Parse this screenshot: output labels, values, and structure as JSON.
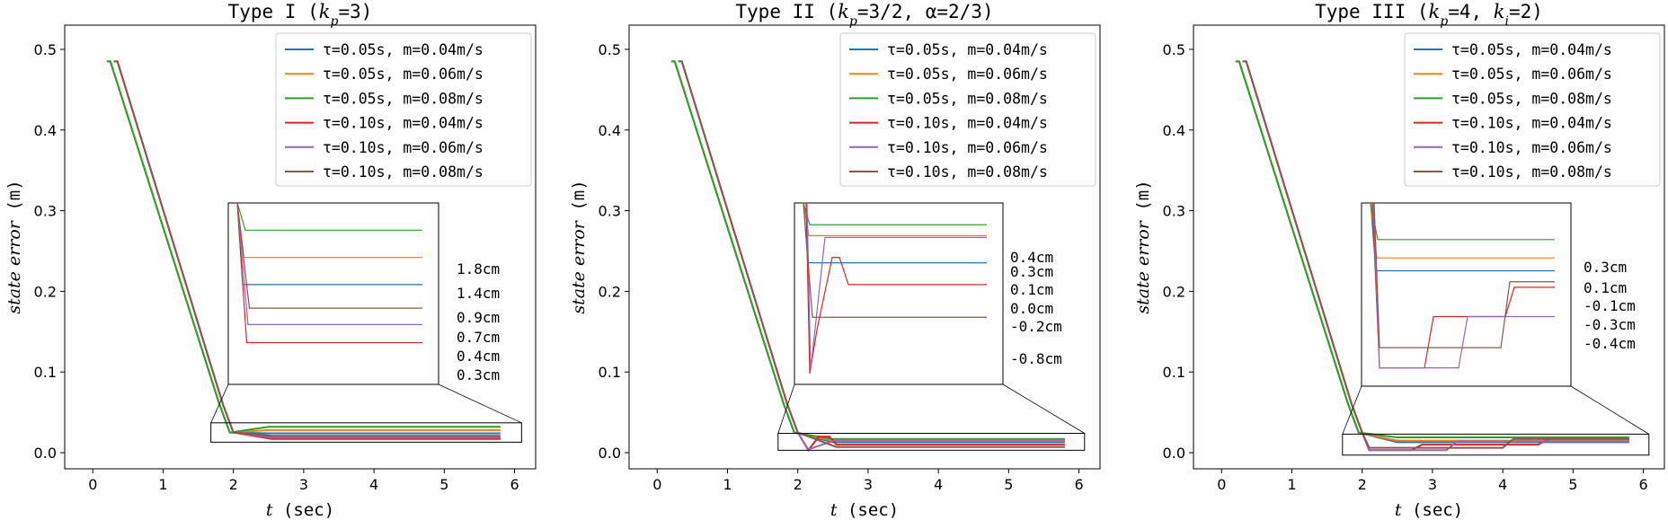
{
  "colors": {
    "blue": "#1f77b4",
    "orange": "#ff7f0e",
    "green": "#2ca02c",
    "red": "#d62728",
    "purple": "#9467bd",
    "brown": "#8c564b"
  },
  "chart_data": [
    {
      "type": "line",
      "title": "Type I ($k_p$=3)",
      "title_main": "Type I (",
      "title_sym": "k",
      "title_sub": "p",
      "title_rest": "=3)",
      "xlabel_var": "t",
      "xlabel_unit": " (sec)",
      "ylabel_var": "state error",
      "ylabel_unit": " (m)",
      "xlim": [
        -0.4,
        6.3
      ],
      "ylim": [
        -0.02,
        0.53
      ],
      "xticks": [
        0,
        1,
        2,
        3,
        4,
        5,
        6
      ],
      "yticks": [
        0.0,
        0.1,
        0.2,
        0.3,
        0.4,
        0.5
      ],
      "legend_location": "upper right",
      "series": [
        {
          "name": "τ=0.05s, m=0.04m/s",
          "color": "blue",
          "tau": 0.05,
          "final": 0.024,
          "dip": 0.0,
          "steps": []
        },
        {
          "name": "τ=0.05s, m=0.06m/s",
          "color": "orange",
          "tau": 0.05,
          "final": 0.028,
          "dip": 0.0,
          "steps": []
        },
        {
          "name": "τ=0.05s, m=0.08m/s",
          "color": "green",
          "tau": 0.05,
          "final": 0.032,
          "dip": 0.0,
          "steps": []
        },
        {
          "name": "τ=0.10s, m=0.04m/s",
          "color": "red",
          "tau": 0.1,
          "final": 0.017,
          "dip": 0.0,
          "steps": []
        },
        {
          "name": "τ=0.10s, m=0.06m/s",
          "color": "purple",
          "tau": 0.1,
          "final": 0.019,
          "dip": 0.0,
          "steps": []
        },
        {
          "name": "τ=0.10s, m=0.08m/s",
          "color": "brown",
          "tau": 0.1,
          "final": 0.021,
          "dip": 0.0,
          "steps": []
        }
      ],
      "annotations": [
        "1.8cm",
        "1.4cm",
        "0.9cm",
        "0.7cm",
        "0.4cm",
        "0.3cm"
      ]
    },
    {
      "type": "line",
      "title": "Type II ($k_p$=3/2, $\\alpha$=2/3)",
      "title_main": "Type II (",
      "title_sym": "k",
      "title_sub": "p",
      "title_rest": "=3/2, α=2/3)",
      "xlabel_var": "t",
      "xlabel_unit": " (sec)",
      "ylabel_var": "state error",
      "ylabel_unit": " (m)",
      "xlim": [
        -0.4,
        6.3
      ],
      "ylim": [
        -0.02,
        0.53
      ],
      "xticks": [
        0,
        1,
        2,
        3,
        4,
        5,
        6
      ],
      "yticks": [
        0.0,
        0.1,
        0.2,
        0.3,
        0.4,
        0.5
      ],
      "legend_location": "upper right",
      "series": [
        {
          "name": "τ=0.05s, m=0.04m/s",
          "color": "blue",
          "tau": 0.05,
          "final": 0.013,
          "dip": 0.0,
          "steps": []
        },
        {
          "name": "τ=0.05s, m=0.06m/s",
          "color": "orange",
          "tau": 0.05,
          "final": 0.015,
          "dip": 0.0,
          "steps": []
        },
        {
          "name": "τ=0.05s, m=0.08m/s",
          "color": "green",
          "tau": 0.05,
          "final": 0.017,
          "dip": 0.0,
          "steps": []
        },
        {
          "name": "τ=0.10s, m=0.04m/s",
          "color": "red",
          "tau": 0.1,
          "final": 0.01,
          "dip": 0.003,
          "bump": 0.02,
          "steps": []
        },
        {
          "name": "τ=0.10s, m=0.06m/s",
          "color": "purple",
          "tau": 0.1,
          "final": 0.016,
          "dip": 0.004,
          "steps": []
        },
        {
          "name": "τ=0.10s, m=0.08m/s",
          "color": "brown",
          "tau": 0.1,
          "final": 0.007,
          "dip": 0.0,
          "steps": []
        }
      ],
      "annotations": [
        "0.4cm",
        "0.3cm",
        "0.1cm",
        "0.0cm",
        "-0.2cm",
        "-0.8cm"
      ]
    },
    {
      "type": "line",
      "title": "Type III ($k_p$=4, $k_i$=2)",
      "title_main": "Type III (",
      "title_sym": "k",
      "title_sub": "p",
      "title_rest": "=4, ",
      "title_sym2": "k",
      "title_sub2": "i",
      "title_rest2": "=2)",
      "xlabel_var": "t",
      "xlabel_unit": " (sec)",
      "ylabel_var": "state error",
      "ylabel_unit": " (m)",
      "xlim": [
        -0.4,
        6.3
      ],
      "ylim": [
        -0.02,
        0.53
      ],
      "xticks": [
        0,
        1,
        2,
        3,
        4,
        5,
        6
      ],
      "yticks": [
        0.0,
        0.1,
        0.2,
        0.3,
        0.4,
        0.5
      ],
      "legend_location": "upper right",
      "series": [
        {
          "name": "τ=0.05s, m=0.04m/s",
          "color": "blue",
          "tau": 0.05,
          "final": 0.013,
          "dip": 0.0,
          "steps": []
        },
        {
          "name": "τ=0.05s, m=0.06m/s",
          "color": "orange",
          "tau": 0.05,
          "final": 0.015,
          "dip": 0.0,
          "steps": []
        },
        {
          "name": "τ=0.05s, m=0.08m/s",
          "color": "green",
          "tau": 0.05,
          "final": 0.019,
          "dip": 0.0,
          "steps": []
        },
        {
          "name": "τ=0.10s, m=0.04m/s",
          "color": "red",
          "tau": 0.1,
          "final": 0.017,
          "dip": 0.0,
          "steps": [
            [
              2.0,
              0.003
            ],
            [
              2.7,
              0.01
            ],
            [
              4.5,
              0.017
            ]
          ]
        },
        {
          "name": "τ=0.10s, m=0.06m/s",
          "color": "purple",
          "tau": 0.1,
          "final": 0.014,
          "dip": 0.0,
          "steps": [
            [
              2.0,
              0.003
            ],
            [
              3.2,
              0.014
            ]
          ]
        },
        {
          "name": "τ=0.10s, m=0.08m/s",
          "color": "brown",
          "tau": 0.1,
          "final": 0.017,
          "dip": 0.0,
          "steps": [
            [
              2.0,
              0.006
            ],
            [
              4.0,
              0.017
            ]
          ]
        }
      ],
      "annotations": [
        "0.3cm",
        "0.1cm",
        "-0.1cm",
        "-0.3cm",
        "-0.4cm"
      ]
    }
  ]
}
